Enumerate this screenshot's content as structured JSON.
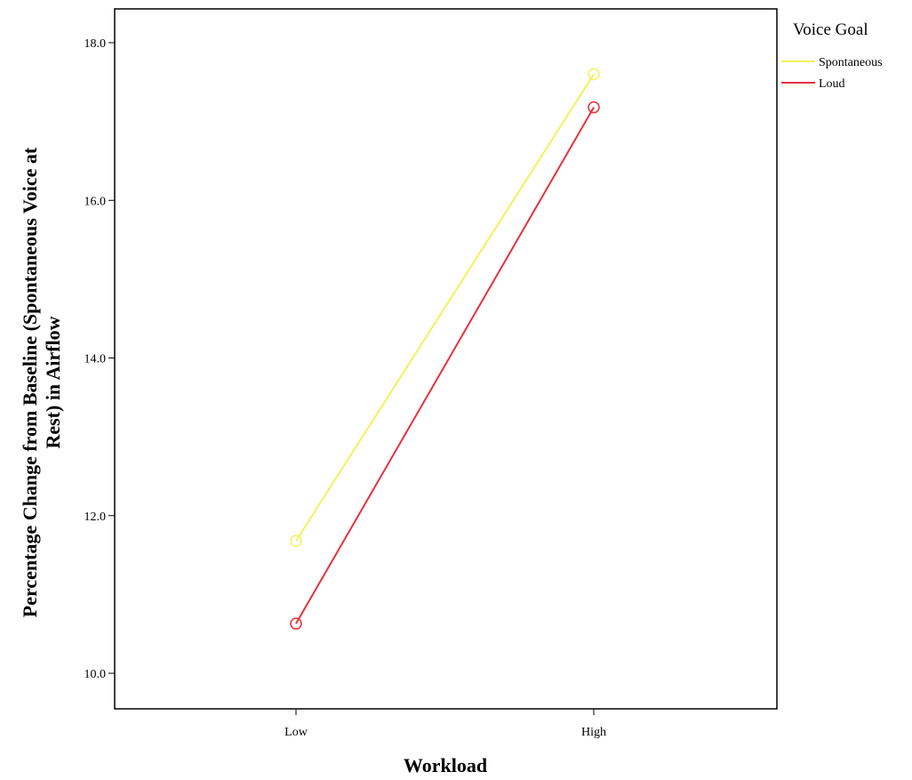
{
  "chart_data": {
    "type": "line",
    "title": "",
    "xlabel": "Workload",
    "ylabel_lines": [
      "Percentage Change from Baseline (Spontaneous Voice at",
      "Rest) in Airflow"
    ],
    "categories": [
      "Low",
      "High"
    ],
    "ylim": [
      9.4,
      18.4
    ],
    "yticks": [
      10.0,
      12.0,
      14.0,
      16.0,
      18.0
    ],
    "ytick_labels": [
      "10.0",
      "12.0",
      "14.0",
      "16.0",
      "18.0"
    ],
    "grid": false,
    "legend": {
      "title": "Voice Goal",
      "position": "right-outside-top"
    },
    "markers": "open-circle",
    "series": [
      {
        "name": "Spontaneous",
        "color": "#f2f25a",
        "values": [
          11.68,
          17.6
        ]
      },
      {
        "name": "Loud",
        "color": "#e8313b",
        "values": [
          10.63,
          17.18
        ]
      }
    ]
  }
}
